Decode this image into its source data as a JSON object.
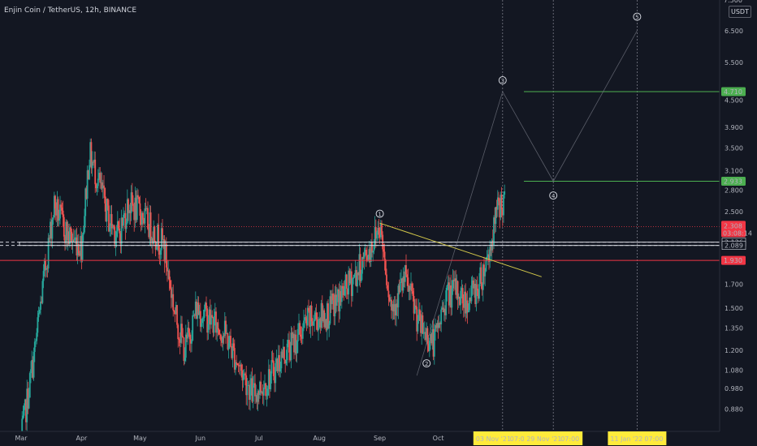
{
  "header": {
    "title": "Enjin Coin / TetherUS, 12h, BINANCE",
    "currency": "USDT"
  },
  "axis": {
    "partial_top_label": "7.500",
    "price_ticks": [
      "6.500",
      "5.500",
      "4.500",
      "3.900",
      "3.500",
      "3.100",
      "2.800",
      "2.500",
      "2.126",
      "2.089",
      "1.700",
      "1.500",
      "1.350",
      "1.200",
      "1.080",
      "0.980",
      "0.880"
    ],
    "months": [
      "Mar",
      "Apr",
      "May",
      "Jun",
      "Jul",
      "Aug",
      "Sep",
      "Oct"
    ],
    "time_badges": [
      "03 Nov '21",
      "07:00",
      "29 Nov '21",
      "07:00",
      "11 Jan '22",
      "07:00"
    ]
  },
  "levels": [
    {
      "label": "4.710",
      "color": "#4caf50"
    },
    {
      "label": "2.933",
      "color": "#4caf50"
    },
    {
      "label": "2.308",
      "sub": "03:08:14",
      "color": "#f23645"
    },
    {
      "label": "1.930",
      "color": "#f23645"
    }
  ],
  "waves": [
    "1",
    "2",
    "3",
    "4",
    "5"
  ],
  "colors": {
    "up": "#26a69a",
    "down": "#ef5350",
    "background": "#131722",
    "target": "#4caf50",
    "resistance": "#f23645",
    "trendline": "#d4c94a",
    "badge": "#ffeb3b"
  },
  "chart_data": {
    "type": "candlestick",
    "title": "Enjin Coin / TetherUS, 12h, BINANCE",
    "y_scale": "log",
    "ylim": [
      0.8,
      7.5
    ],
    "x_labels": [
      "Mar",
      "Apr",
      "May",
      "Jun",
      "Jul",
      "Aug",
      "Sep",
      "Oct"
    ],
    "anchor_closes": [
      [
        "2021-03-01",
        0.75
      ],
      [
        "2021-03-08",
        1.2
      ],
      [
        "2021-03-13",
        1.8
      ],
      [
        "2021-03-18",
        2.6
      ],
      [
        "2021-03-25",
        2.2
      ],
      [
        "2021-04-01",
        2.1
      ],
      [
        "2021-04-05",
        3.4
      ],
      [
        "2021-04-10",
        2.9
      ],
      [
        "2021-04-15",
        2.4
      ],
      [
        "2021-04-20",
        2.2
      ],
      [
        "2021-04-25",
        2.6
      ],
      [
        "2021-05-01",
        2.5
      ],
      [
        "2021-05-08",
        2.25
      ],
      [
        "2021-05-13",
        2.1
      ],
      [
        "2021-05-19",
        1.45
      ],
      [
        "2021-05-24",
        1.2
      ],
      [
        "2021-05-30",
        1.5
      ],
      [
        "2021-06-07",
        1.4
      ],
      [
        "2021-06-14",
        1.3
      ],
      [
        "2021-06-21",
        1.1
      ],
      [
        "2021-06-28",
        0.95
      ],
      [
        "2021-07-05",
        1.02
      ],
      [
        "2021-07-12",
        1.15
      ],
      [
        "2021-07-19",
        1.25
      ],
      [
        "2021-07-26",
        1.4
      ],
      [
        "2021-08-05",
        1.45
      ],
      [
        "2021-08-12",
        1.6
      ],
      [
        "2021-08-20",
        1.8
      ],
      [
        "2021-08-28",
        2.1
      ],
      [
        "2021-09-01",
        2.35
      ],
      [
        "2021-09-07",
        1.5
      ],
      [
        "2021-09-14",
        1.75
      ],
      [
        "2021-09-22",
        1.35
      ],
      [
        "2021-09-29",
        1.25
      ],
      [
        "2021-10-05",
        1.6
      ],
      [
        "2021-10-10",
        1.65
      ],
      [
        "2021-10-15",
        1.55
      ],
      [
        "2021-10-22",
        1.7
      ],
      [
        "2021-10-28",
        2.1
      ],
      [
        "2021-11-01",
        2.6
      ]
    ],
    "horizontal_levels": [
      4.71,
      2.933,
      2.308,
      2.126,
      2.089,
      1.93
    ],
    "projection_path": [
      [
        "2021-09-20",
        1.05
      ],
      [
        "2021-11-03",
        4.71
      ],
      [
        "2021-11-29",
        2.933
      ],
      [
        "2022-01-11",
        6.5
      ]
    ],
    "trendline": [
      [
        "2021-09-01",
        2.35
      ],
      [
        "2021-11-23",
        1.77
      ]
    ],
    "wave_labels": [
      {
        "label": "1",
        "date": "2021-09-01",
        "price": 2.47
      },
      {
        "label": "2",
        "date": "2021-09-25",
        "price": 1.12
      },
      {
        "label": "3",
        "date": "2021-11-03",
        "price": 5.0
      },
      {
        "label": "4",
        "date": "2021-11-29",
        "price": 2.72
      },
      {
        "label": "5",
        "date": "2022-01-11",
        "price": 7.0
      }
    ]
  }
}
